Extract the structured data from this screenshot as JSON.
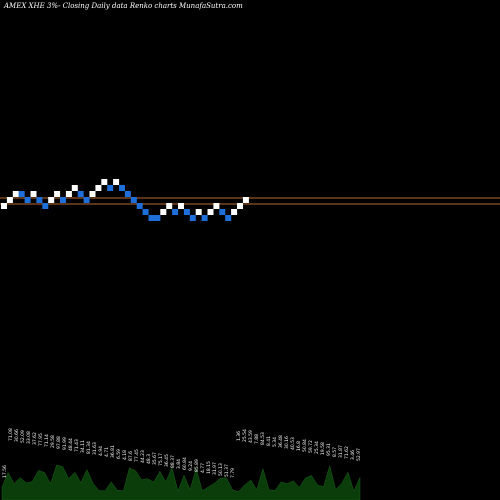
{
  "header": {
    "title": "AMEX  XHE 3%-  Closing Daily data  Renko  charts MunafaSutra.com"
  },
  "colors": {
    "background": "#000000",
    "up_brick": "#ffffff",
    "down_brick": "#1e6fd9",
    "reference_line": "#b8672e",
    "volume_fill": "#0b3d0b"
  },
  "chart_data": {
    "type": "renko",
    "title": "AMEX  XHE 3%-  Closing Daily data  Renko  charts MunafaSutra.com",
    "brick_levels": [
      0,
      1,
      2,
      2,
      1,
      2,
      1,
      0,
      1,
      2,
      1,
      2,
      3,
      2,
      1,
      2,
      3,
      4,
      3,
      4,
      3,
      2,
      1,
      0,
      -1,
      -2,
      -2,
      -1,
      0,
      -1,
      0,
      -1,
      -2,
      -1,
      -2,
      -1,
      0,
      -1,
      -2,
      -1,
      0,
      1
    ],
    "brick_direction": [
      "up",
      "up",
      "up",
      "down",
      "down",
      "up",
      "down",
      "down",
      "up",
      "up",
      "down",
      "up",
      "up",
      "down",
      "down",
      "up",
      "up",
      "up",
      "down",
      "up",
      "down",
      "down",
      "down",
      "down",
      "down",
      "down",
      "down",
      "up",
      "up",
      "down",
      "up",
      "down",
      "down",
      "up",
      "down",
      "up",
      "up",
      "down",
      "down",
      "up",
      "up",
      "up"
    ],
    "reference_lines": [
      "support-line",
      "resistance-line"
    ],
    "volume_labels": [
      "17.56",
      "71.08",
      "30.66",
      "52.09",
      "33.08",
      "37.62",
      "77.95",
      "71.14",
      "29.58",
      "97.88",
      "91.99",
      "48.44",
      "71.43",
      "34.11",
      "81.34",
      "31.63",
      "4.94",
      "4.71",
      "36.81",
      "6.59",
      "4.18",
      "87.6",
      "77.45",
      "44.23",
      "48.3",
      "35.67",
      "75.17",
      "36.45",
      "88.37",
      "3.84",
      "60.84",
      "9.24",
      "85.89",
      "4.77",
      "18.15",
      "31.97",
      "50.13",
      "51.37",
      "7.79",
      "1.36",
      "25.54",
      "43.59",
      "7.88",
      "84.53",
      "8.41",
      "5.34",
      "36.48",
      "30.16",
      "40.53",
      "16.8",
      "50.84",
      "59.72",
      "25.34",
      "19.58",
      "95.31",
      "8.57",
      "31.87",
      "71.62",
      "3.46",
      "52.97"
    ],
    "volume_values": [
      17.56,
      71.08,
      30.66,
      52.09,
      33.08,
      37.62,
      77.95,
      71.14,
      29.58,
      97.88,
      91.99,
      48.44,
      71.43,
      34.11,
      81.34,
      31.63,
      4.94,
      4.71,
      36.81,
      6.59,
      4.18,
      87.6,
      77.45,
      44.23,
      48.3,
      35.67,
      75.17,
      36.45,
      88.37,
      3.84,
      60.84,
      9.24,
      85.89,
      4.77,
      18.15,
      31.97,
      50.13,
      51.37,
      7.79,
      1.36,
      25.54,
      43.59,
      7.88,
      84.53,
      8.41,
      5.34,
      36.48,
      30.16,
      40.53,
      16.8,
      50.84,
      59.72,
      25.34,
      19.58,
      95.31,
      8.57,
      31.87,
      71.62,
      3.46,
      52.97
    ]
  }
}
